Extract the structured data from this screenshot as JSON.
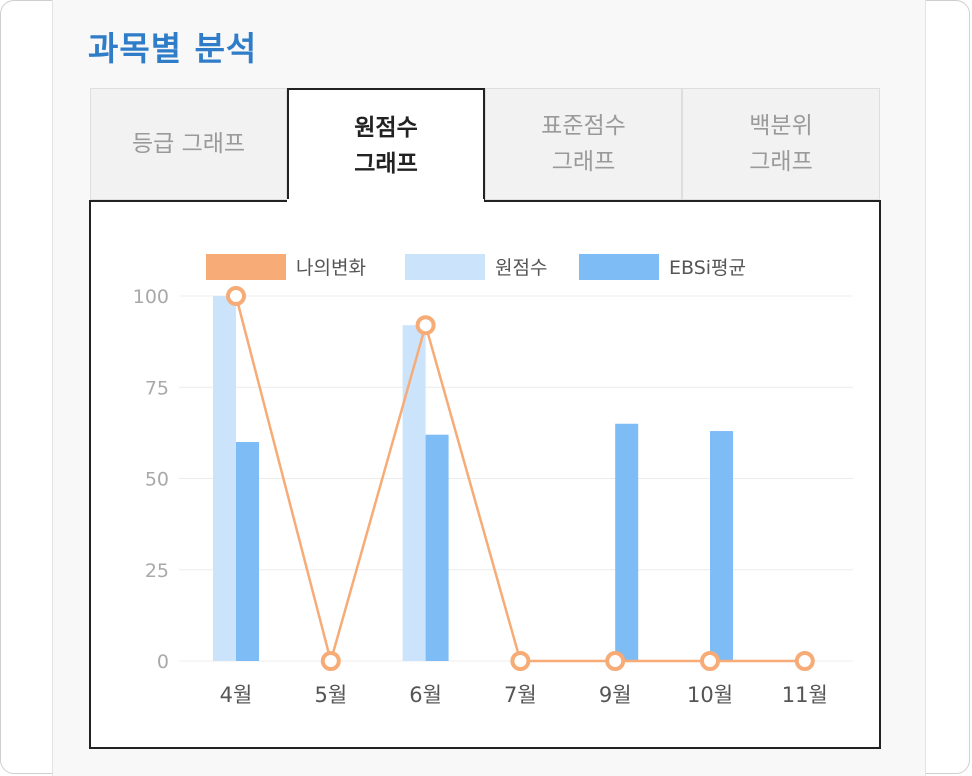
{
  "section": {
    "title": "과목별 분석"
  },
  "tabs": [
    {
      "label": "등급 그래프",
      "active": false
    },
    {
      "label": "원점수\n그래프",
      "active": true
    },
    {
      "label": "표준점수\n그래프",
      "active": false
    },
    {
      "label": "백분위\n그래프",
      "active": false
    }
  ],
  "chart_data": {
    "type": "bar",
    "categories": [
      "4월",
      "5월",
      "6월",
      "7월",
      "9월",
      "10월",
      "11월"
    ],
    "series": [
      {
        "name": "원점수",
        "kind": "bar",
        "color": "#cce4fb",
        "values": [
          100,
          0,
          92,
          0,
          0,
          0,
          0
        ]
      },
      {
        "name": "EBSi평균",
        "kind": "bar",
        "color": "#7dbcf5",
        "values": [
          60,
          0,
          62,
          0,
          65,
          63,
          0
        ]
      },
      {
        "name": "나의변화",
        "kind": "line",
        "color": "#f7ab76",
        "values": [
          100,
          0,
          92,
          0,
          0,
          0,
          0
        ]
      }
    ],
    "legend_order": [
      "나의변화",
      "원점수",
      "EBSi평균"
    ],
    "yticks": [
      0,
      25,
      50,
      75,
      100
    ],
    "ylim": [
      0,
      100
    ],
    "grid": true,
    "legend": "top"
  }
}
